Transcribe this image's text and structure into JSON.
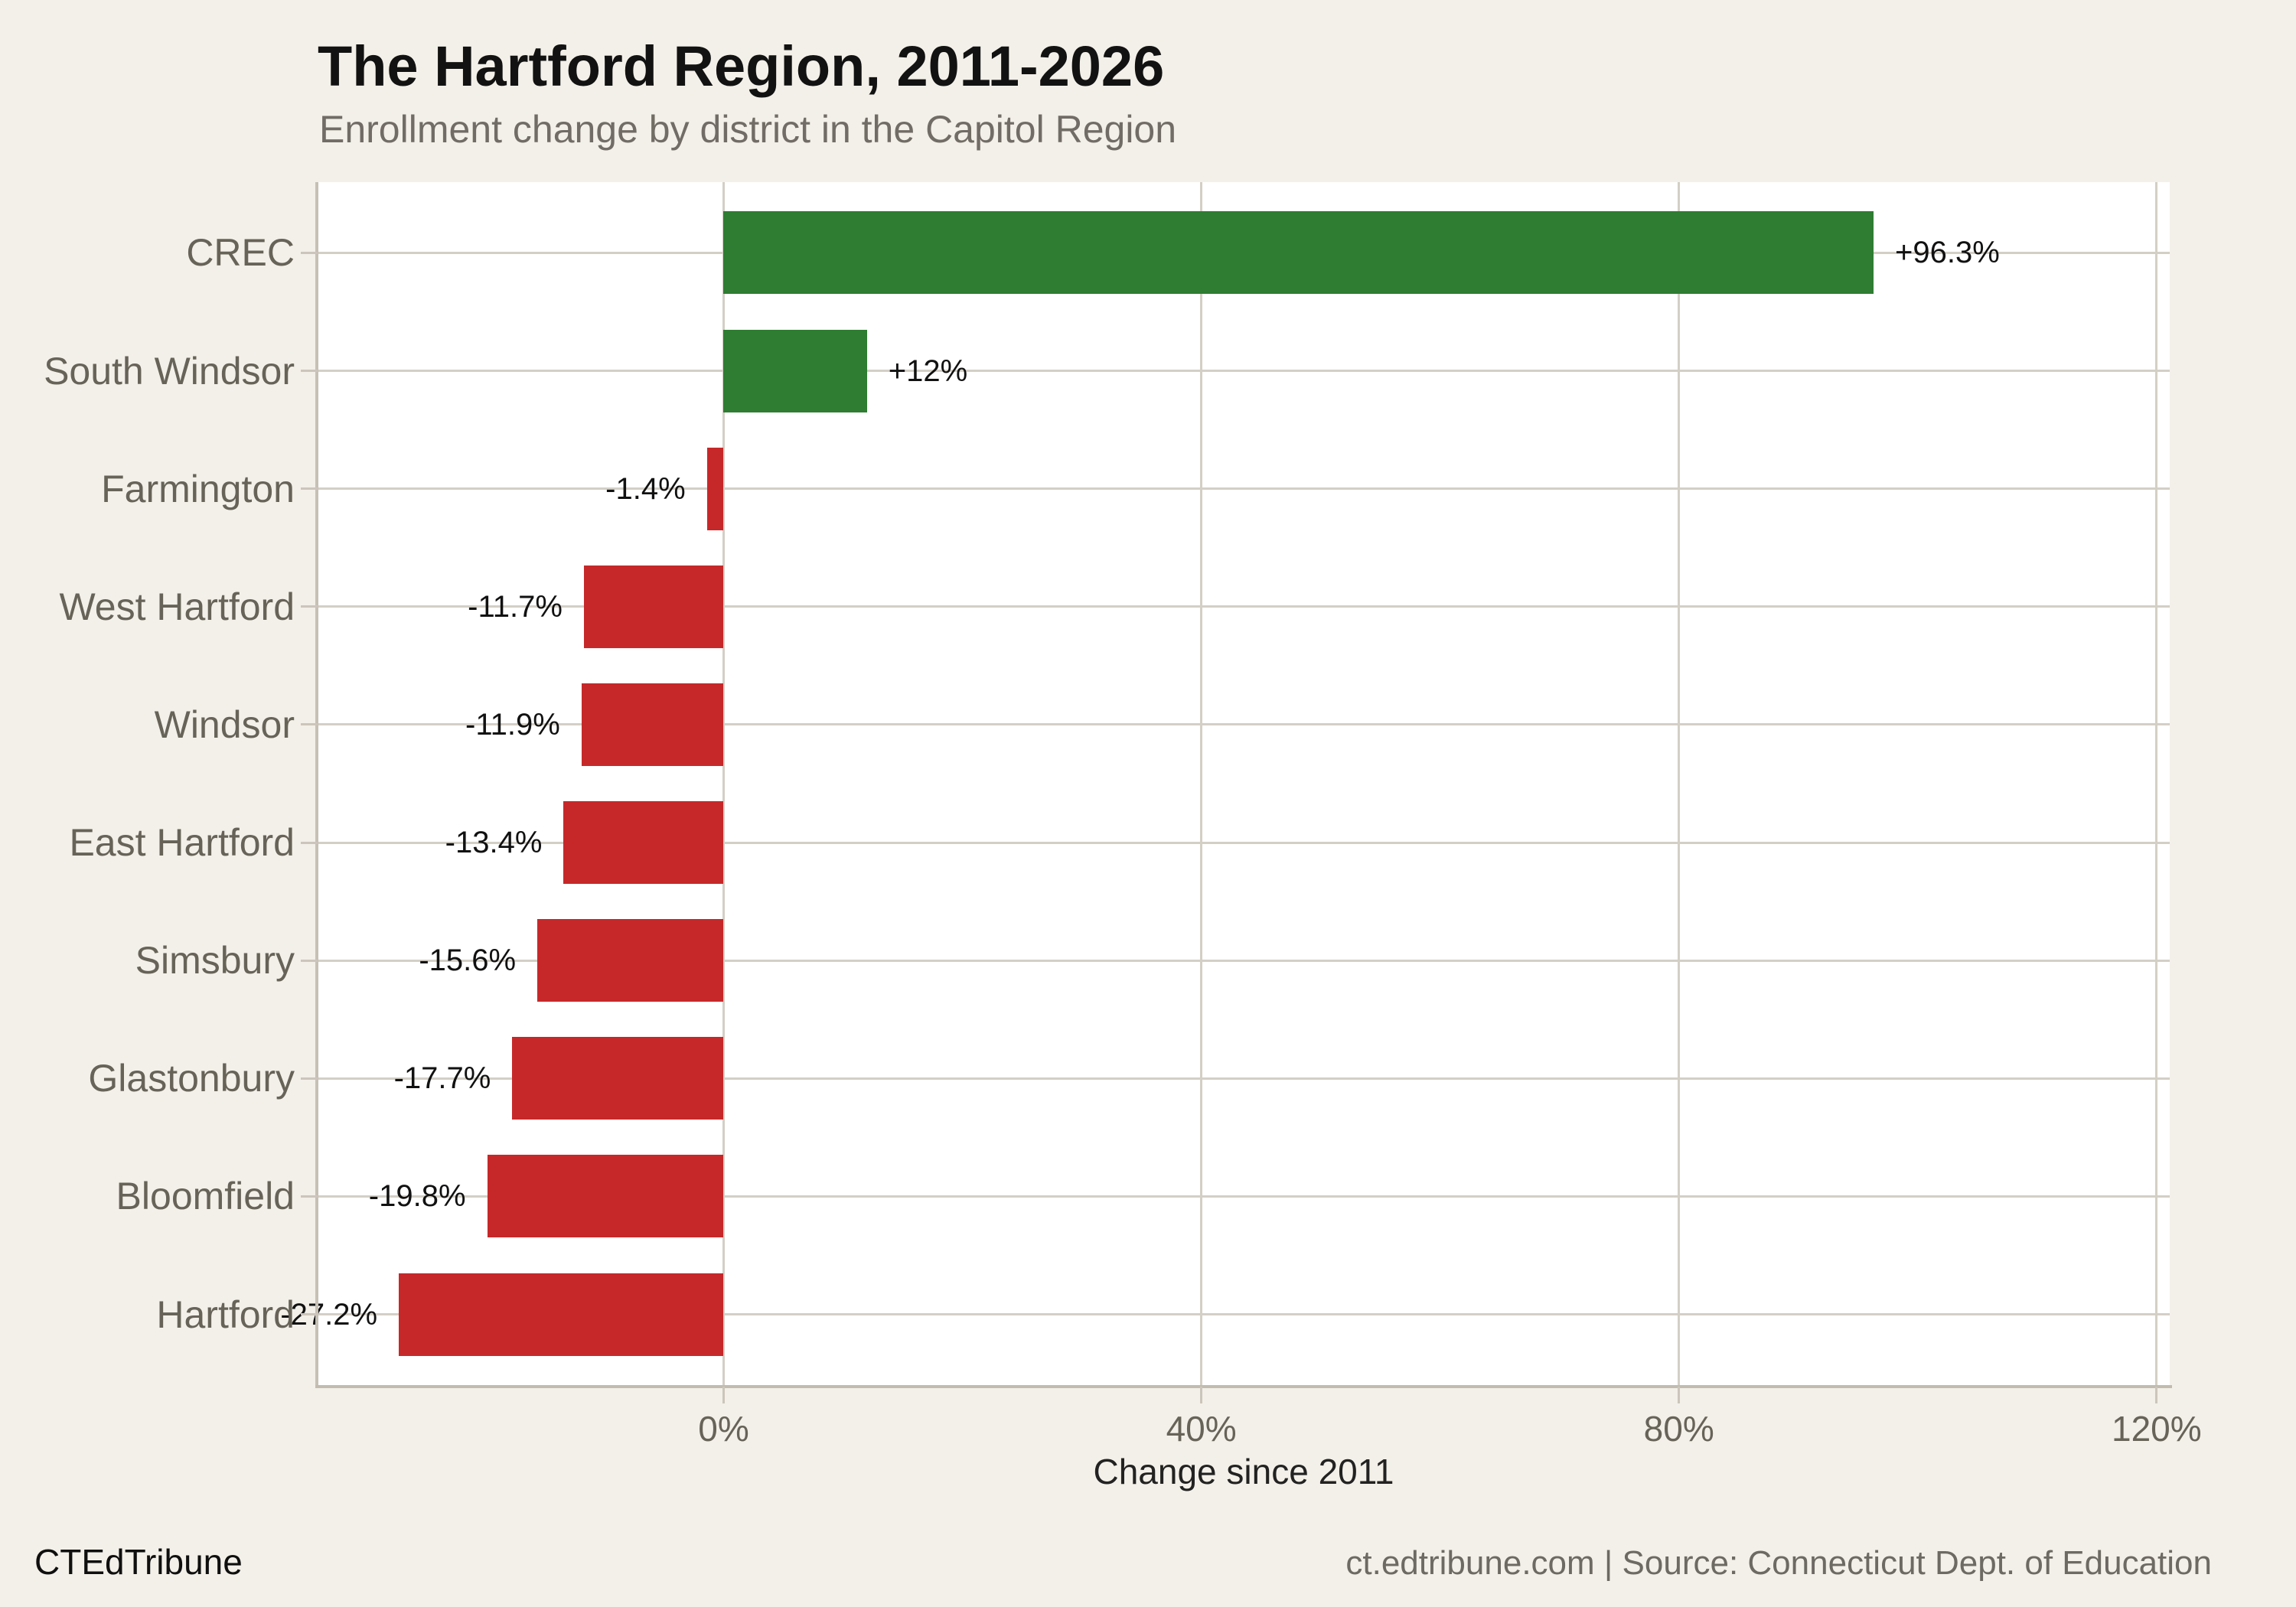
{
  "chart_data": {
    "type": "bar",
    "orientation": "horizontal",
    "title": "The Hartford Region, 2011-2026",
    "subtitle": "Enrollment change by district in the Capitol Region",
    "xlabel": "Change since 2011",
    "ylabel": "",
    "categories": [
      "CREC",
      "South Windsor",
      "Farmington",
      "West Hartford",
      "Windsor",
      "East Hartford",
      "Simsbury",
      "Glastonbury",
      "Bloomfield",
      "Hartford"
    ],
    "values": [
      96.3,
      12,
      -1.4,
      -11.7,
      -11.9,
      -13.4,
      -15.6,
      -17.7,
      -19.8,
      -27.2
    ],
    "value_labels": [
      "+96.3%",
      "+12%",
      "-1.4%",
      "-11.7%",
      "-11.9%",
      "-13.4%",
      "-15.6%",
      "-17.7%",
      "-19.8%",
      "-27.2%"
    ],
    "x_ticks": [
      0,
      40,
      80,
      120
    ],
    "x_tick_labels": [
      "0%",
      "40%",
      "80%",
      "120%"
    ],
    "xlim": [
      -34,
      121.1
    ],
    "grid": true,
    "legend": false,
    "colors": {
      "positive": "#2e7d32",
      "negative": "#c62829",
      "background": "#f3f0e9",
      "panel": "#ffffff",
      "gridline": "#d4cfc5"
    }
  },
  "footer": {
    "brand": "CTEdTribune",
    "source": "ct.edtribune.com | Source: Connecticut Dept. of Education"
  }
}
